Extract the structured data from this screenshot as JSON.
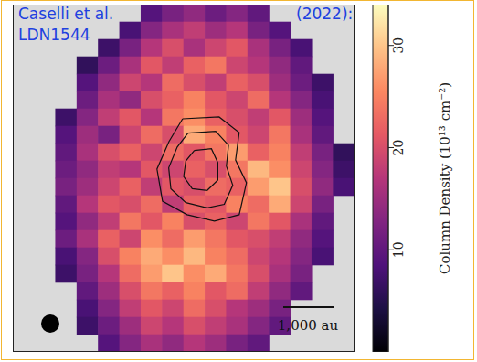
{
  "chart_data": {
    "type": "heatmap",
    "title": [
      "Caselli et al.",
      "(2022):",
      "LDN1544"
    ],
    "tick_labels": false,
    "annotations": [
      "1,000 au"
    ],
    "colorbar": {
      "label": "Column Density (10¹³ cm⁻²)",
      "range": [
        0,
        34
      ],
      "ticks": [
        0,
        10,
        20,
        30
      ]
    },
    "cells": [
      [
        null,
        null,
        null,
        null,
        null,
        null,
        9,
        12,
        14,
        11,
        13,
        10,
        null,
        null,
        null,
        null
      ],
      [
        null,
        null,
        null,
        null,
        null,
        8,
        13,
        16,
        18,
        15,
        17,
        12,
        9,
        null,
        null,
        null
      ],
      [
        null,
        null,
        null,
        null,
        7,
        12,
        17,
        20,
        16,
        19,
        21,
        16,
        12,
        8,
        null,
        null
      ],
      [
        null,
        null,
        null,
        6,
        11,
        16,
        21,
        18,
        22,
        24,
        19,
        17,
        14,
        10,
        null,
        null
      ],
      [
        null,
        null,
        null,
        9,
        14,
        19,
        17,
        23,
        20,
        18,
        22,
        20,
        15,
        11,
        7,
        null
      ],
      [
        null,
        null,
        null,
        11,
        16,
        14,
        20,
        22,
        25,
        21,
        19,
        23,
        17,
        13,
        8,
        null
      ],
      [
        null,
        null,
        7,
        13,
        18,
        21,
        17,
        24,
        26,
        22,
        20,
        18,
        21,
        15,
        9,
        null
      ],
      [
        null,
        null,
        9,
        15,
        12,
        19,
        23,
        20,
        28,
        25,
        21,
        19,
        24,
        16,
        10,
        null
      ],
      [
        null,
        null,
        10,
        16,
        20,
        22,
        19,
        23,
        21,
        24,
        27,
        22,
        25,
        18,
        12,
        6
      ],
      [
        null,
        null,
        11,
        14,
        18,
        17,
        21,
        19,
        22,
        20,
        24,
        29,
        26,
        19,
        13,
        7
      ],
      [
        null,
        null,
        12,
        15,
        19,
        22,
        18,
        21,
        20,
        23,
        22,
        27,
        30,
        20,
        14,
        8
      ],
      [
        null,
        null,
        10,
        17,
        21,
        20,
        23,
        18,
        22,
        21,
        25,
        23,
        28,
        19,
        12,
        null
      ],
      [
        null,
        null,
        9,
        14,
        18,
        24,
        21,
        25,
        20,
        22,
        19,
        24,
        21,
        16,
        10,
        null
      ],
      [
        null,
        null,
        11,
        16,
        22,
        19,
        26,
        23,
        27,
        24,
        21,
        20,
        18,
        14,
        9,
        null
      ],
      [
        null,
        null,
        8,
        13,
        20,
        25,
        28,
        26,
        29,
        25,
        23,
        19,
        17,
        13,
        8,
        null
      ],
      [
        null,
        null,
        7,
        12,
        17,
        23,
        27,
        30,
        26,
        28,
        24,
        20,
        16,
        12,
        null,
        null
      ],
      [
        null,
        null,
        null,
        10,
        15,
        20,
        24,
        22,
        25,
        21,
        23,
        18,
        14,
        10,
        null,
        null
      ],
      [
        null,
        null,
        null,
        8,
        13,
        18,
        21,
        19,
        23,
        20,
        17,
        15,
        12,
        null,
        null,
        null
      ],
      [
        null,
        null,
        null,
        7,
        11,
        15,
        19,
        17,
        20,
        18,
        16,
        13,
        10,
        null,
        null,
        null
      ],
      [
        null,
        null,
        null,
        null,
        9,
        13,
        16,
        14,
        17,
        15,
        12,
        10,
        null,
        null,
        null,
        null
      ]
    ],
    "contours": [
      [
        [
          7.45,
          6.08
        ],
        [
          9.16,
          5.97
        ],
        [
          10.1,
          6.87
        ],
        [
          9.93,
          8.45
        ],
        [
          10.44,
          9.76
        ],
        [
          10.1,
          11.6
        ],
        [
          8.94,
          11.97
        ],
        [
          7.66,
          11.6
        ],
        [
          6.51,
          10.82
        ],
        [
          6.25,
          8.97
        ],
        [
          6.81,
          7.39
        ],
        [
          7.45,
          6.08
        ]
      ],
      [
        [
          7.7,
          6.9
        ],
        [
          9.0,
          6.8
        ],
        [
          9.6,
          7.6
        ],
        [
          9.5,
          8.8
        ],
        [
          9.8,
          9.9
        ],
        [
          9.4,
          11.0
        ],
        [
          8.6,
          11.2
        ],
        [
          7.6,
          10.9
        ],
        [
          6.9,
          10.1
        ],
        [
          6.8,
          8.9
        ],
        [
          7.2,
          7.7
        ],
        [
          7.7,
          6.9
        ]
      ],
      [
        [
          8.0,
          7.9
        ],
        [
          8.8,
          7.8
        ],
        [
          9.1,
          8.6
        ],
        [
          9.1,
          9.6
        ],
        [
          8.6,
          10.2
        ],
        [
          7.9,
          10.1
        ],
        [
          7.5,
          9.4
        ],
        [
          7.6,
          8.5
        ],
        [
          8.0,
          7.9
        ]
      ]
    ]
  }
}
